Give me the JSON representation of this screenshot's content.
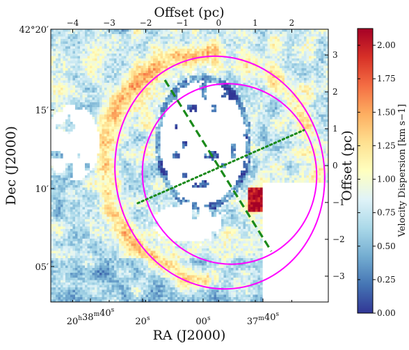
{
  "chart_data": {
    "type": "heatmap",
    "description_axes": {
      "bottom": {
        "title": "RA (J2000)",
        "ticks": [
          {
            "value": 0,
            "label": "20h38m40s"
          },
          {
            "value": 1,
            "label": "20s"
          },
          {
            "value": 2,
            "label": "00s"
          },
          {
            "value": 3,
            "label": "37m40s"
          }
        ]
      },
      "left": {
        "title": "Dec (J2000)",
        "ticks": [
          {
            "value": 20,
            "label": "42°20′"
          },
          {
            "value": 15,
            "label": "15′"
          },
          {
            "value": 10,
            "label": "10′"
          },
          {
            "value": 5,
            "label": "05′"
          }
        ]
      },
      "top": {
        "title": "Offset (pc)",
        "range": [
          -4.6,
          3.0
        ],
        "ticks": [
          -4,
          -3,
          -2,
          -1,
          0,
          1,
          2
        ]
      },
      "right": {
        "title": "Offset (pc)",
        "range": [
          -3.7,
          3.7
        ],
        "ticks": [
          3,
          2,
          1,
          0,
          -1,
          -2,
          -3
        ]
      }
    },
    "colorbar": {
      "title": "Velocity Dispersion [km s−1]",
      "range": [
        0.0,
        2.125
      ],
      "colormap": "RdYlBu_r",
      "ticks": [
        {
          "value": 0.0,
          "label": "0.00"
        },
        {
          "value": 0.25,
          "label": "0.25"
        },
        {
          "value": 0.5,
          "label": "0.50"
        },
        {
          "value": 0.75,
          "label": "0.75"
        },
        {
          "value": 1.0,
          "label": "1.00"
        },
        {
          "value": 1.25,
          "label": "1.25"
        },
        {
          "value": 1.5,
          "label": "1.50"
        },
        {
          "value": 1.75,
          "label": "1.75"
        },
        {
          "value": 2.0,
          "label": "2.00"
        }
      ]
    },
    "overlays": {
      "ellipse_color": "#ff00ff",
      "dashed_line_color": "#1a8a1a",
      "dotted_line_color": "#1a8a1a"
    }
  }
}
